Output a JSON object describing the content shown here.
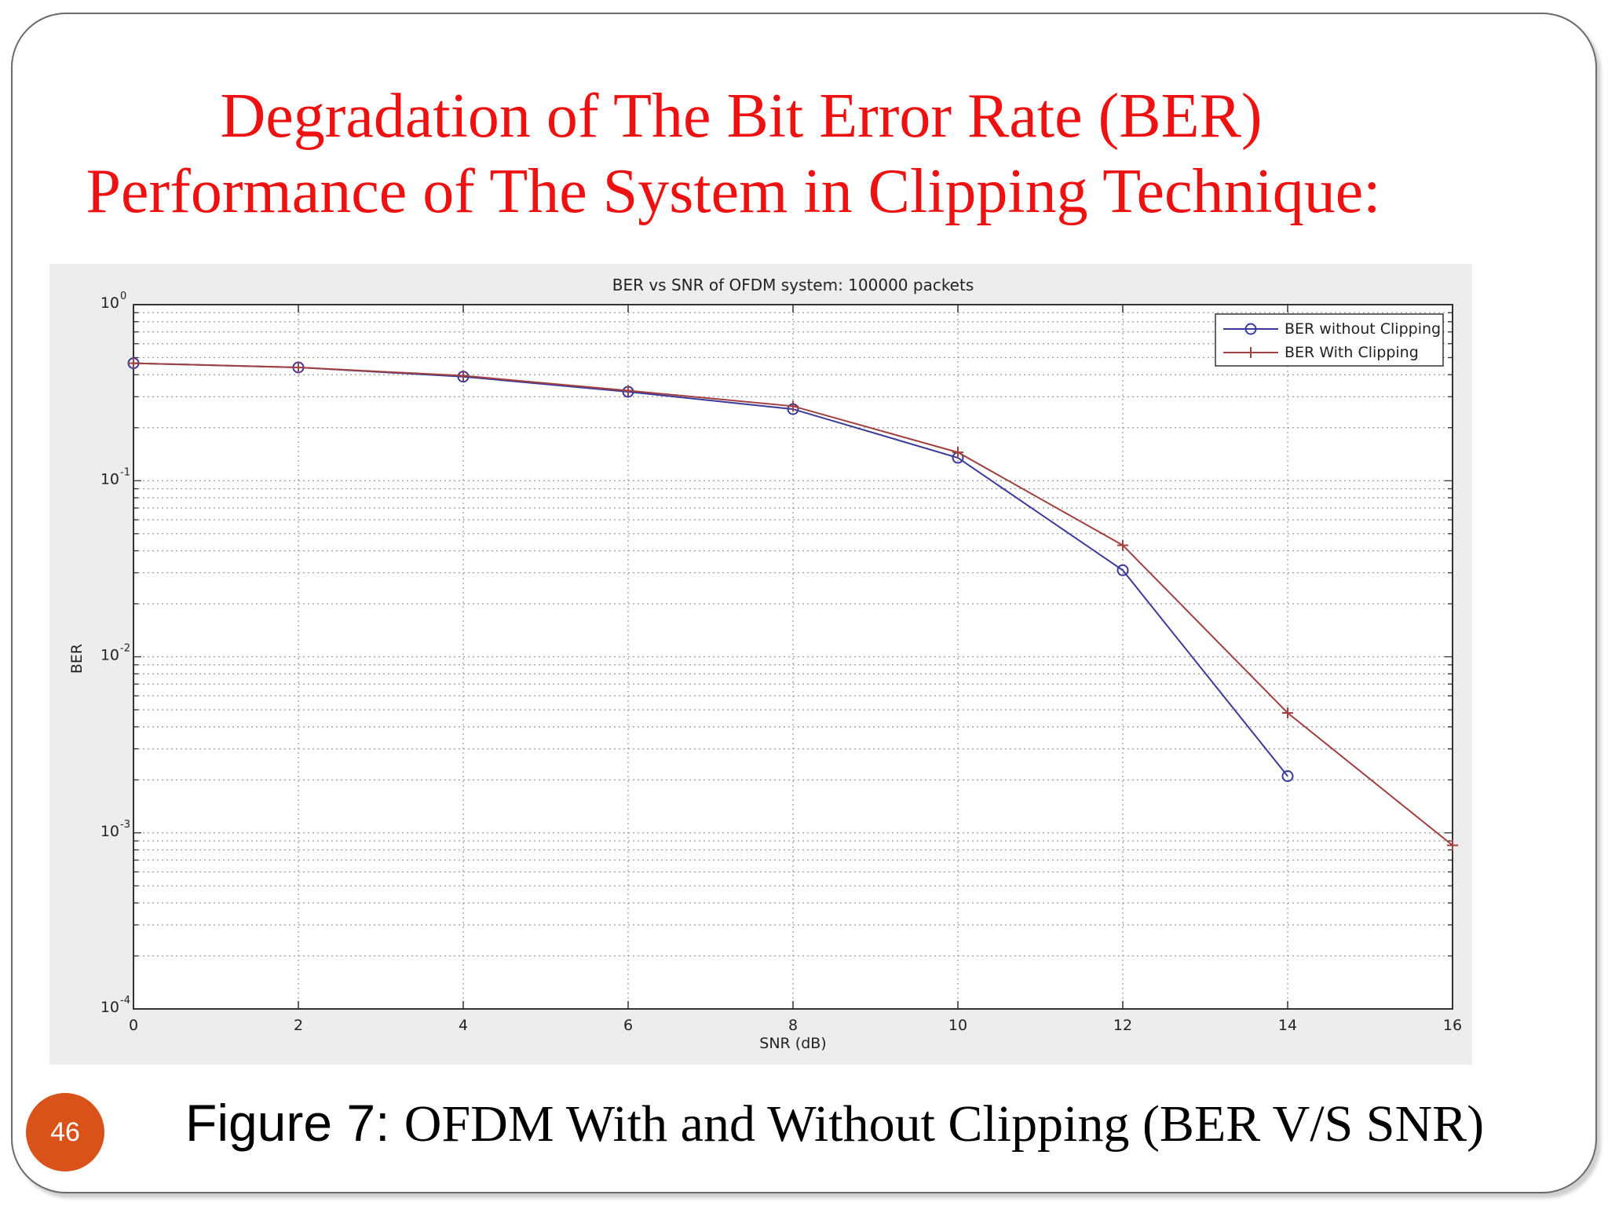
{
  "slide": {
    "title_line1": "Degradation of The Bit Error Rate (BER)",
    "title_line2": "Performance of The System in Clipping  Technique:",
    "caption_prefix": "Figure 7: ",
    "caption_text": "OFDM With and Without Clipping (BER V/S SNR)",
    "page_number": "46",
    "title_color": "#ee1111",
    "badge_color": "#d9521a"
  },
  "chart_data": {
    "type": "line",
    "title": "BER vs SNR of OFDM system: 100000 packets",
    "xlabel": "SNR (dB)",
    "ylabel": "BER",
    "xlim": [
      0,
      16
    ],
    "ylim": [
      0.0001,
      1
    ],
    "yscale": "log",
    "grid": true,
    "legend_position": "top-right",
    "x_ticks": [
      "0",
      "2",
      "4",
      "6",
      "8",
      "10",
      "12",
      "14",
      "16"
    ],
    "y_ticks": [
      {
        "base": "10",
        "exp": "0",
        "value": 1
      },
      {
        "base": "10",
        "exp": "-1",
        "value": 0.1
      },
      {
        "base": "10",
        "exp": "-2",
        "value": 0.01
      },
      {
        "base": "10",
        "exp": "-3",
        "value": 0.001
      },
      {
        "base": "10",
        "exp": "-4",
        "value": 0.0001
      }
    ],
    "series": [
      {
        "name": "BER without Clipping",
        "color": "#3a3a9a",
        "marker": "circle",
        "x": [
          0,
          2,
          4,
          6,
          8,
          10,
          12,
          14
        ],
        "y": [
          0.465,
          0.44,
          0.39,
          0.32,
          0.255,
          0.135,
          0.031,
          0.0021
        ]
      },
      {
        "name": "BER With Clipping",
        "color": "#a04040",
        "marker": "plus",
        "x": [
          0,
          2,
          4,
          6,
          8,
          10,
          12,
          14,
          16
        ],
        "y": [
          0.465,
          0.44,
          0.395,
          0.325,
          0.265,
          0.145,
          0.043,
          0.0048,
          0.00085
        ]
      }
    ]
  }
}
